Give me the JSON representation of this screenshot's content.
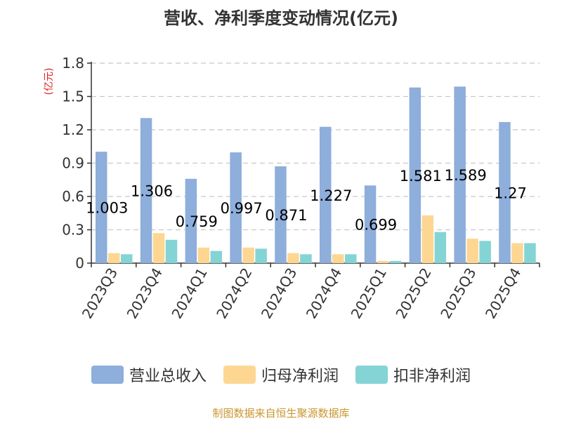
{
  "chart_data": {
    "type": "bar",
    "title": "营收、净利季度变动情况(亿元)",
    "ylabel": "(亿元)",
    "categories": [
      "2023Q3",
      "2023Q4",
      "2024Q1",
      "2024Q2",
      "2024Q3",
      "2024Q4",
      "2025Q1",
      "2025Q2",
      "2025Q3",
      "2025Q4"
    ],
    "ylim": [
      0,
      1.8
    ],
    "yticks": [
      "0",
      "0.3",
      "0.6",
      "0.9",
      "1.2",
      "1.5",
      "1.8"
    ],
    "grid": true,
    "legend_position": "bottom",
    "series": [
      {
        "name": "营业总收入",
        "color": "#8eaedb",
        "values": [
          1.003,
          1.306,
          0.759,
          0.997,
          0.871,
          1.227,
          0.699,
          1.581,
          1.589,
          1.27
        ],
        "labels": [
          "1.003",
          "1.306",
          "0.759",
          "0.997",
          "0.871",
          "1.227",
          "0.699",
          "1.581",
          "1.589",
          "1.27"
        ]
      },
      {
        "name": "归母净利润",
        "color": "#fdd792",
        "values": [
          0.09,
          0.27,
          0.14,
          0.14,
          0.09,
          0.08,
          0.02,
          0.43,
          0.22,
          0.18
        ]
      },
      {
        "name": "扣非净利润",
        "color": "#84d4d5",
        "values": [
          0.08,
          0.21,
          0.11,
          0.13,
          0.08,
          0.08,
          0.02,
          0.28,
          0.2,
          0.18
        ]
      }
    ]
  },
  "source": "制图数据来自恒生聚源数据库"
}
